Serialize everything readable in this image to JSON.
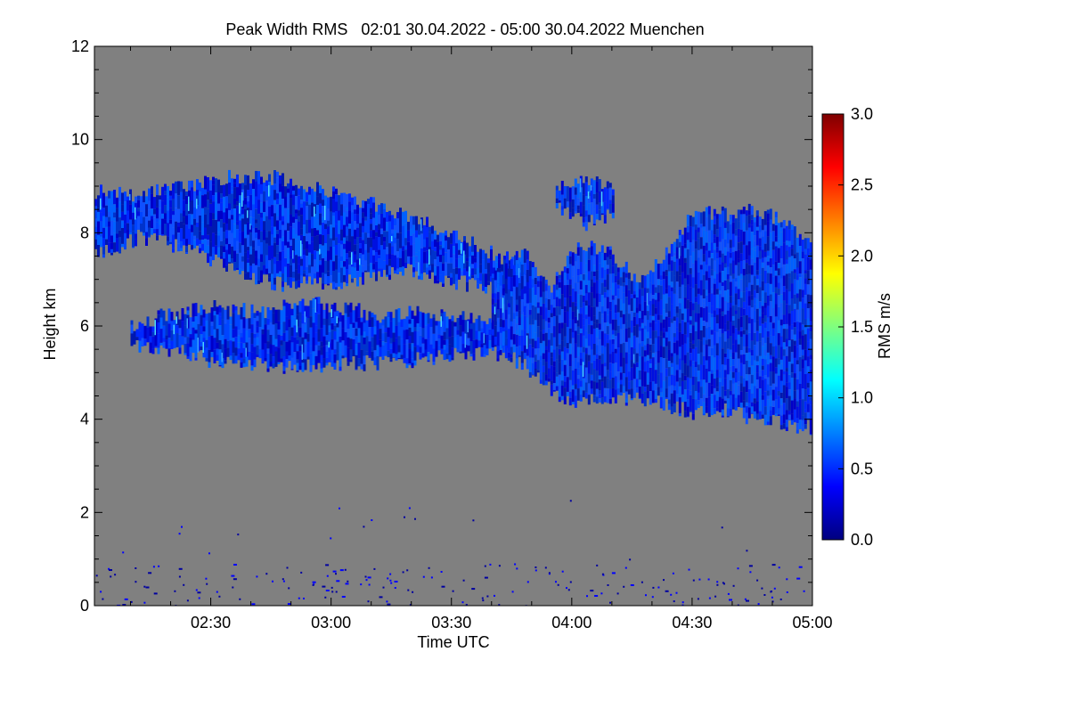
{
  "chart_data": {
    "type": "heatmap",
    "title": "Peak Width RMS   02:01 30.04.2022 - 05:00 30.04.2022 Muenchen",
    "xlabel": "Time UTC",
    "ylabel": "Height km",
    "xlim": [
      "02:01",
      "05:00"
    ],
    "ylim": [
      0,
      12
    ],
    "x_ticks": [
      "02:30",
      "03:00",
      "03:30",
      "04:00",
      "04:30",
      "05:00"
    ],
    "y_ticks": [
      0,
      2,
      4,
      6,
      8,
      10,
      12
    ],
    "colorbar": {
      "label": "RMS m/s",
      "range": [
        0,
        3
      ],
      "ticks": [
        "0.0",
        "0.5",
        "1.0",
        "1.5",
        "2.0",
        "2.5",
        "3.0"
      ],
      "colormap": [
        "#00007f",
        "#0000ff",
        "#007fff",
        "#00ffff",
        "#7fff7f",
        "#ffff00",
        "#ff7f00",
        "#ff0000",
        "#7f0000"
      ]
    },
    "background_color": "#808080",
    "dominant_values_range_ms": [
      0.2,
      0.6
    ],
    "layers": [
      {
        "name": "upper cloud layer",
        "time_start": "02:01",
        "time_end": "03:50",
        "top_km": [
          8.9,
          8.8,
          9.0,
          9.2,
          9.2,
          9.0,
          8.7,
          8.4,
          8.0,
          7.6,
          7.2
        ],
        "base_km": [
          7.5,
          7.9,
          7.7,
          7.3,
          6.9,
          6.9,
          7.0,
          7.2,
          7.0,
          6.8,
          6.3
        ]
      },
      {
        "name": "middle cloud layer",
        "time_start": "02:10",
        "time_end": "03:45",
        "top_km": [
          6.0,
          6.3,
          6.4,
          6.3,
          6.5,
          6.4,
          6.2,
          6.3,
          6.2,
          6.0
        ],
        "base_km": [
          5.6,
          5.5,
          5.2,
          5.2,
          5.1,
          5.2,
          5.2,
          5.3,
          5.4,
          5.4
        ]
      },
      {
        "name": "thick layer",
        "time_start": "03:40",
        "time_end": "05:00",
        "top_km": [
          7.0,
          7.6,
          6.8,
          7.8,
          7.6,
          7.0,
          7.6,
          8.5,
          8.4,
          8.5,
          8.2,
          7.8
        ],
        "base_km": [
          5.5,
          5.2,
          4.6,
          4.3,
          4.5,
          4.4,
          4.3,
          4.1,
          4.2,
          4.0,
          3.9,
          3.8
        ]
      },
      {
        "name": "isolated cell",
        "time_start": "03:56",
        "time_end": "04:10",
        "top_km": [
          9.0,
          9.2,
          8.9
        ],
        "base_km": [
          8.5,
          8.2,
          8.4
        ]
      }
    ],
    "low_level_returns_km": [
      0,
      2.3
    ]
  }
}
